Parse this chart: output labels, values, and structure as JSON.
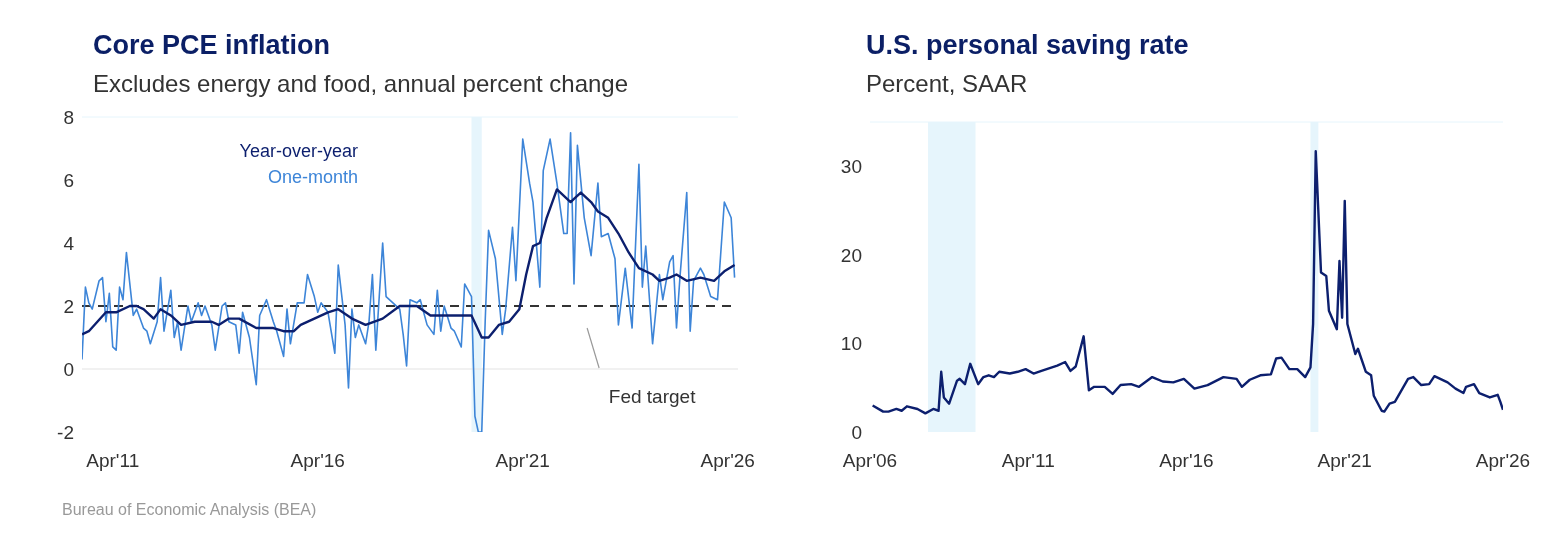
{
  "chart_data": [
    {
      "type": "line",
      "title": "Core PCE inflation",
      "subtitle": "Excludes energy and food, annual percent change",
      "xlim": [
        "2010-07",
        "2026-07"
      ],
      "xticks": [
        {
          "value": "2011-04",
          "label": "Apr'11"
        },
        {
          "value": "2016-04",
          "label": "Apr'16"
        },
        {
          "value": "2021-04",
          "label": "Apr'21"
        },
        {
          "value": "2026-04",
          "label": "Apr'26"
        }
      ],
      "ylim": [
        -2,
        8
      ],
      "yticks": [
        -2,
        0,
        2,
        4,
        6,
        8
      ],
      "ref_lines": [
        {
          "axis": "y",
          "value": 0,
          "label": null,
          "color": "#e3e3e3",
          "line_style": "solid"
        },
        {
          "axis": "y",
          "value": 2,
          "label": "Fed target",
          "color": "#333333",
          "line_style": "dashed"
        }
      ],
      "bands": [
        {
          "axis": "x",
          "from": "2020-01",
          "to": "2020-04",
          "label": null,
          "color": "#e6f5fc"
        }
      ],
      "annotations": [
        "Bureau of Economic Analysis (BEA)"
      ],
      "series": [
        {
          "name": "Year-over-year",
          "color": "#0c1f6e",
          "x": [
            "2010-07",
            "2010-09",
            "2011-02",
            "2011-05",
            "2011-09",
            "2011-11",
            "2012-01",
            "2012-04",
            "2012-06",
            "2012-09",
            "2012-12",
            "2013-04",
            "2013-09",
            "2013-11",
            "2014-02",
            "2014-05",
            "2014-10",
            "2015-03",
            "2015-06",
            "2015-09",
            "2015-11",
            "2016-03",
            "2016-07",
            "2016-10",
            "2017-02",
            "2017-06",
            "2017-11",
            "2018-04",
            "2018-09",
            "2019-01",
            "2019-07",
            "2020-01",
            "2020-04",
            "2020-06",
            "2020-09",
            "2020-12",
            "2021-03",
            "2021-05",
            "2021-07",
            "2021-09",
            "2021-11",
            "2022-02",
            "2022-06",
            "2022-07",
            "2022-09",
            "2022-12",
            "2023-02",
            "2023-05",
            "2023-08",
            "2023-11",
            "2024-02",
            "2024-06",
            "2024-08",
            "2024-11",
            "2025-01",
            "2025-04",
            "2025-08",
            "2025-12",
            "2026-03",
            "2026-06"
          ],
          "values": [
            1.1,
            1.2,
            1.8,
            1.8,
            2.0,
            2.0,
            1.9,
            1.6,
            1.9,
            1.7,
            1.4,
            1.5,
            1.5,
            1.4,
            1.6,
            1.6,
            1.3,
            1.3,
            1.2,
            1.2,
            1.4,
            1.6,
            1.8,
            1.9,
            1.6,
            1.4,
            1.6,
            2.0,
            2.0,
            1.7,
            1.7,
            1.7,
            1.0,
            1.0,
            1.4,
            1.5,
            1.9,
            3.0,
            3.9,
            4.0,
            4.8,
            5.7,
            5.3,
            5.4,
            5.6,
            5.3,
            5.0,
            4.8,
            4.3,
            3.7,
            3.2,
            3.0,
            2.8,
            2.9,
            3.0,
            2.8,
            2.9,
            2.8,
            3.1,
            3.3
          ]
        },
        {
          "name": "One-month",
          "color": "#3d85d8",
          "x": [
            "2010-07",
            "2010-08",
            "2010-09",
            "2010-10",
            "2010-12",
            "2011-01",
            "2011-02",
            "2011-03",
            "2011-04",
            "2011-05",
            "2011-06",
            "2011-07",
            "2011-08",
            "2011-10",
            "2011-11",
            "2012-01",
            "2012-02",
            "2012-03",
            "2012-05",
            "2012-06",
            "2012-07",
            "2012-09",
            "2012-10",
            "2012-11",
            "2012-12",
            "2013-02",
            "2013-03",
            "2013-05",
            "2013-06",
            "2013-07",
            "2013-09",
            "2013-10",
            "2013-12",
            "2014-01",
            "2014-02",
            "2014-04",
            "2014-05",
            "2014-06",
            "2014-08",
            "2014-10",
            "2014-11",
            "2015-01",
            "2015-03",
            "2015-04",
            "2015-06",
            "2015-07",
            "2015-08",
            "2015-10",
            "2015-12",
            "2016-01",
            "2016-03",
            "2016-04",
            "2016-05",
            "2016-07",
            "2016-09",
            "2016-10",
            "2016-12",
            "2017-01",
            "2017-02",
            "2017-03",
            "2017-04",
            "2017-06",
            "2017-07",
            "2017-08",
            "2017-09",
            "2017-10",
            "2017-11",
            "2017-12",
            "2018-02",
            "2018-04",
            "2018-05",
            "2018-06",
            "2018-07",
            "2018-09",
            "2018-10",
            "2018-12",
            "2019-02",
            "2019-03",
            "2019-04",
            "2019-05",
            "2019-07",
            "2019-08",
            "2019-10",
            "2019-11",
            "2020-01",
            "2020-02",
            "2020-03",
            "2020-04",
            "2020-05",
            "2020-06",
            "2020-08",
            "2020-10",
            "2020-11",
            "2021-01",
            "2021-02",
            "2021-04",
            "2021-06",
            "2021-07",
            "2021-09",
            "2021-10",
            "2021-12",
            "2022-02",
            "2022-04",
            "2022-05",
            "2022-06",
            "2022-07",
            "2022-08",
            "2022-10",
            "2022-12",
            "2023-02",
            "2023-03",
            "2023-05",
            "2023-07",
            "2023-08",
            "2023-10",
            "2023-12",
            "2024-02",
            "2024-03",
            "2024-04",
            "2024-06",
            "2024-08",
            "2024-09",
            "2024-11",
            "2024-12",
            "2025-01",
            "2025-02",
            "2025-04",
            "2025-05",
            "2025-06",
            "2025-08",
            "2025-09",
            "2025-11",
            "2026-01",
            "2026-03",
            "2026-05",
            "2026-06"
          ],
          "values": [
            0.3,
            2.6,
            2.1,
            1.9,
            2.8,
            2.9,
            1.5,
            2.4,
            0.7,
            0.6,
            2.6,
            2.2,
            3.7,
            1.7,
            1.9,
            1.3,
            1.2,
            0.8,
            1.5,
            2.9,
            1.2,
            2.5,
            1.0,
            1.5,
            0.6,
            2.0,
            1.5,
            2.1,
            1.7,
            2.0,
            1.4,
            0.6,
            2.0,
            2.1,
            1.5,
            1.4,
            0.5,
            1.8,
            1.0,
            -0.5,
            1.7,
            2.2,
            1.5,
            1.2,
            0.4,
            1.9,
            0.8,
            2.1,
            2.1,
            3.0,
            2.3,
            1.8,
            2.1,
            1.8,
            0.5,
            3.3,
            1.4,
            -0.6,
            1.9,
            1.0,
            1.4,
            0.8,
            1.5,
            3.0,
            0.6,
            2.3,
            4.0,
            2.3,
            2.1,
            1.9,
            1.1,
            0.1,
            2.2,
            2.1,
            2.2,
            1.4,
            1.1,
            2.5,
            1.2,
            2.0,
            1.3,
            1.2,
            0.7,
            2.7,
            2.3,
            -1.5,
            -2.0,
            -2.0,
            1.5,
            4.4,
            3.5,
            1.1,
            1.9,
            4.5,
            2.8,
            7.3,
            5.9,
            5.3,
            2.6,
            6.3,
            7.3,
            5.9,
            4.3,
            4.3,
            7.5,
            2.7,
            7.1,
            4.8,
            3.6,
            5.9,
            4.2,
            4.3,
            3.5,
            1.4,
            3.2,
            1.3,
            6.5,
            2.6,
            3.9,
            0.8,
            3.0,
            2.2,
            3.4,
            3.6,
            1.3,
            2.9,
            5.6,
            1.2,
            2.8,
            3.2,
            3.0,
            2.3,
            2.2,
            5.3,
            4.8,
            2.9
          ]
        }
      ]
    },
    {
      "type": "line",
      "title": "U.S. personal saving rate",
      "subtitle": "Percent, SAAR",
      "xlim": [
        "2006-04",
        "2026-04"
      ],
      "xticks": [
        {
          "value": "2006-04",
          "label": "Apr'06"
        },
        {
          "value": "2011-04",
          "label": "Apr'11"
        },
        {
          "value": "2016-04",
          "label": "Apr'16"
        },
        {
          "value": "2021-04",
          "label": "Apr'21"
        },
        {
          "value": "2026-04",
          "label": "Apr'26"
        }
      ],
      "ylim": [
        0,
        35
      ],
      "yticks": [
        0,
        10,
        20,
        30
      ],
      "bands": [
        {
          "axis": "x",
          "from": "2008-02",
          "to": "2009-08",
          "label": null,
          "color": "#e6f5fc"
        },
        {
          "axis": "x",
          "from": "2020-03",
          "to": "2020-06",
          "label": null,
          "color": "#e6f5fc"
        }
      ],
      "series": [
        {
          "color": "#0c1f6e",
          "x": [
            "2006-05",
            "2006-09",
            "2006-11",
            "2007-02",
            "2007-04",
            "2007-06",
            "2007-10",
            "2008-01",
            "2008-04",
            "2008-06",
            "2008-07",
            "2008-08",
            "2008-10",
            "2009-01",
            "2009-02",
            "2009-04",
            "2009-06",
            "2009-09",
            "2009-11",
            "2010-01",
            "2010-03",
            "2010-05",
            "2010-09",
            "2010-12",
            "2011-03",
            "2011-06",
            "2011-09",
            "2012-01",
            "2012-03",
            "2012-06",
            "2012-08",
            "2012-10",
            "2013-01",
            "2013-03",
            "2013-05",
            "2013-09",
            "2013-12",
            "2014-03",
            "2014-07",
            "2014-10",
            "2015-03",
            "2015-07",
            "2015-11",
            "2016-03",
            "2016-07",
            "2016-12",
            "2017-06",
            "2017-11",
            "2018-01",
            "2018-04",
            "2018-08",
            "2018-12",
            "2019-02",
            "2019-04",
            "2019-07",
            "2019-10",
            "2020-01",
            "2020-03",
            "2020-04",
            "2020-05",
            "2020-07",
            "2020-09",
            "2020-10",
            "2021-01",
            "2021-02",
            "2021-03",
            "2021-04",
            "2021-05",
            "2021-08",
            "2021-09",
            "2021-12",
            "2022-02",
            "2022-03",
            "2022-06",
            "2022-07",
            "2022-09",
            "2022-11",
            "2023-04",
            "2023-06",
            "2023-09",
            "2023-12",
            "2024-02",
            "2024-07",
            "2024-10",
            "2025-01",
            "2025-02",
            "2025-05",
            "2025-07",
            "2025-11",
            "2026-02",
            "2026-03",
            "2026-04"
          ],
          "values": [
            3.0,
            2.3,
            2.3,
            2.6,
            2.4,
            2.9,
            2.6,
            2.1,
            2.6,
            2.4,
            6.8,
            3.9,
            3.2,
            5.8,
            6.0,
            5.4,
            7.7,
            5.4,
            6.2,
            6.4,
            6.2,
            6.8,
            6.6,
            6.8,
            7.1,
            6.6,
            6.9,
            7.3,
            7.5,
            7.9,
            6.9,
            7.4,
            10.8,
            4.7,
            5.1,
            5.1,
            4.3,
            5.3,
            5.4,
            5.1,
            6.2,
            5.7,
            5.6,
            6.0,
            4.9,
            5.3,
            6.2,
            6.0,
            5.1,
            5.9,
            6.4,
            6.5,
            8.3,
            8.4,
            7.1,
            7.1,
            6.2,
            7.3,
            12.2,
            31.7,
            18.0,
            17.6,
            13.7,
            11.6,
            19.3,
            12.9,
            26.1,
            12.2,
            8.8,
            9.4,
            6.8,
            6.4,
            4.1,
            2.4,
            2.3,
            3.2,
            3.4,
            6.0,
            6.2,
            5.3,
            5.4,
            6.3,
            5.6,
            4.9,
            4.4,
            5.1,
            5.4,
            4.4,
            3.9,
            4.2,
            3.4,
            2.5
          ]
        }
      ]
    }
  ]
}
